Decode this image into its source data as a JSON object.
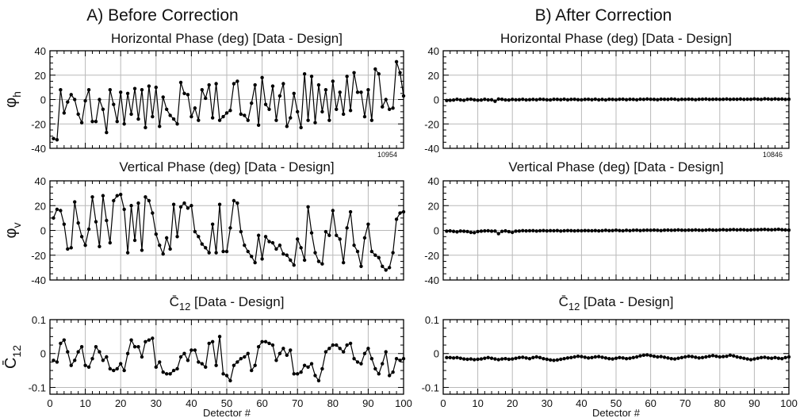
{
  "figure": {
    "panel_a_title": "A) Before Correction",
    "panel_b_title": "B) After Correction"
  },
  "chart_data": [
    {
      "type": "line",
      "panel": "A",
      "title": "Horizontal Phase (deg) [Data - Design]",
      "ylabel": "φh",
      "ylabel_main": "φ",
      "ylabel_sub": "h",
      "xlabel": "",
      "xlim": [
        0,
        100
      ],
      "ylim": [
        -40,
        40
      ],
      "xticks": [
        0,
        10,
        20,
        30,
        40,
        50,
        60,
        70,
        80,
        90,
        100
      ],
      "xtick_labels": false,
      "yticks": [
        -40,
        -20,
        0,
        20,
        40
      ],
      "grid": true,
      "annotation": "10954",
      "x": [
        1,
        2,
        3,
        4,
        5,
        6,
        7,
        8,
        9,
        10,
        11,
        12,
        13,
        14,
        15,
        16,
        17,
        18,
        19,
        20,
        21,
        22,
        23,
        24,
        25,
        26,
        27,
        28,
        29,
        30,
        31,
        32,
        33,
        34,
        35,
        36,
        37,
        38,
        39,
        40,
        41,
        42,
        43,
        44,
        45,
        46,
        47,
        48,
        49,
        50,
        51,
        52,
        53,
        54,
        55,
        56,
        57,
        58,
        59,
        60,
        61,
        62,
        63,
        64,
        65,
        66,
        67,
        68,
        69,
        70,
        71,
        72,
        73,
        74,
        75,
        76,
        77,
        78,
        79,
        80,
        81,
        82,
        83,
        84,
        85,
        86,
        87,
        88,
        89,
        90,
        91,
        92,
        93,
        94,
        95,
        96,
        97,
        98,
        99,
        100
      ],
      "y": [
        -32,
        -33,
        8,
        -11,
        -2,
        4,
        0,
        -12,
        -19,
        -1,
        8,
        -18,
        -18,
        0,
        -8,
        -27,
        8,
        -4,
        -18,
        6,
        -20,
        5,
        -12,
        9,
        -16,
        8,
        -23,
        11,
        -14,
        10,
        -22,
        2,
        -8,
        -13,
        -16,
        -20,
        14,
        5,
        4,
        -14,
        -7,
        -17,
        8,
        1,
        12,
        -15,
        13,
        -17,
        -14,
        -11,
        -9,
        13,
        15,
        -12,
        -13,
        -17,
        -3,
        12,
        -21,
        18,
        -4,
        -8,
        11,
        -17,
        3,
        13,
        -22,
        -15,
        5,
        -10,
        -23,
        21,
        -17,
        19,
        -19,
        12,
        -10,
        8,
        -17,
        15,
        -8,
        6,
        -12,
        19,
        -9,
        22,
        6,
        6,
        -14,
        8,
        -17,
        25,
        21,
        -6,
        0,
        -8,
        -7,
        31,
        22,
        3
      ]
    },
    {
      "type": "line",
      "panel": "B",
      "title": "Horizontal Phase (deg) [Data - Design]",
      "ylabel": "",
      "xlabel": "",
      "xlim": [
        0,
        100
      ],
      "ylim": [
        -40,
        40
      ],
      "xticks": [
        0,
        10,
        20,
        30,
        40,
        50,
        60,
        70,
        80,
        90,
        100
      ],
      "xtick_labels": false,
      "yticks": [
        -40,
        -20,
        0,
        20,
        40
      ],
      "grid": true,
      "annotation": "10846",
      "x": [
        1,
        2,
        3,
        4,
        5,
        6,
        7,
        8,
        9,
        10,
        11,
        12,
        13,
        14,
        15,
        16,
        17,
        18,
        19,
        20,
        21,
        22,
        23,
        24,
        25,
        26,
        27,
        28,
        29,
        30,
        31,
        32,
        33,
        34,
        35,
        36,
        37,
        38,
        39,
        40,
        41,
        42,
        43,
        44,
        45,
        46,
        47,
        48,
        49,
        50,
        51,
        52,
        53,
        54,
        55,
        56,
        57,
        58,
        59,
        60,
        61,
        62,
        63,
        64,
        65,
        66,
        67,
        68,
        69,
        70,
        71,
        72,
        73,
        74,
        75,
        76,
        77,
        78,
        79,
        80,
        81,
        82,
        83,
        84,
        85,
        86,
        87,
        88,
        89,
        90,
        91,
        92,
        93,
        94,
        95,
        96,
        97,
        98,
        99,
        100
      ],
      "y": [
        -0.8,
        -0.6,
        -0.4,
        0.2,
        -0.3,
        -0.6,
        0.1,
        0.3,
        -0.2,
        -0.5,
        -0.4,
        0.2,
        -0.3,
        -0.2,
        -1.4,
        0.4,
        0.2,
        -0.3,
        -0.4,
        0.1,
        -0.2,
        -0.1,
        0.2,
        -0.3,
        -0.1,
        0.1,
        -0.2,
        0.3,
        0.1,
        -0.2,
        -0.3,
        0.2,
        0.1,
        -0.1,
        0.3,
        -0.2,
        0.1,
        0.2,
        -0.1,
        -0.2,
        0.1,
        0.2,
        -0.1,
        0.3,
        -0.2,
        0.1,
        -0.3,
        0.2,
        0.1,
        -0.1,
        0.2,
        0.3,
        -0.1,
        0.2,
        0.1,
        -0.2,
        0.3,
        0.1,
        0.4,
        0.2,
        0.1,
        -0.1,
        0.3,
        0.2,
        0.1,
        0.4,
        0.3,
        -0.1,
        0.2,
        0.1,
        0.3,
        0.2,
        -0.1,
        0.2,
        0.3,
        0.4,
        0.1,
        0.2,
        0.3,
        0.1,
        0.2,
        0.4,
        0.1,
        0.3,
        0.2,
        0.4,
        0.1,
        0.3,
        0.2,
        0.5,
        0.3,
        0.1,
        0.6,
        0.4,
        0.2,
        0.5,
        0.3,
        0.4,
        0.1,
        0.3
      ]
    },
    {
      "type": "line",
      "panel": "A",
      "title": "Vertical Phase (deg) [Data - Design]",
      "ylabel": "φv",
      "ylabel_main": "φ",
      "ylabel_sub": "v",
      "xlabel": "",
      "xlim": [
        0,
        100
      ],
      "ylim": [
        -40,
        40
      ],
      "xticks": [
        0,
        10,
        20,
        30,
        40,
        50,
        60,
        70,
        80,
        90,
        100
      ],
      "xtick_labels": false,
      "yticks": [
        -40,
        -20,
        0,
        20,
        40
      ],
      "grid": true,
      "x": [
        1,
        2,
        3,
        4,
        5,
        6,
        7,
        8,
        9,
        10,
        11,
        12,
        13,
        14,
        15,
        16,
        17,
        18,
        19,
        20,
        21,
        22,
        23,
        24,
        25,
        26,
        27,
        28,
        29,
        30,
        31,
        32,
        33,
        34,
        35,
        36,
        37,
        38,
        39,
        40,
        41,
        42,
        43,
        44,
        45,
        46,
        47,
        48,
        49,
        50,
        51,
        52,
        53,
        54,
        55,
        56,
        57,
        58,
        59,
        60,
        61,
        62,
        63,
        64,
        65,
        66,
        67,
        68,
        69,
        70,
        71,
        72,
        73,
        74,
        75,
        76,
        77,
        78,
        79,
        80,
        81,
        82,
        83,
        84,
        85,
        86,
        87,
        88,
        89,
        90,
        91,
        92,
        93,
        94,
        95,
        96,
        97,
        98,
        99,
        100
      ],
      "y": [
        10,
        17,
        16,
        5,
        -15,
        -14,
        23,
        6,
        -5,
        -12,
        1,
        27,
        7,
        -13,
        28,
        8,
        -10,
        24,
        28,
        29,
        17,
        -18,
        20,
        -8,
        22,
        -16,
        27,
        24,
        14,
        -3,
        -12,
        -19,
        -6,
        -15,
        21,
        -5,
        19,
        22,
        18,
        20,
        -1,
        -5,
        -11,
        -14,
        -18,
        5,
        -18,
        21,
        -17,
        -17,
        2,
        24,
        22,
        -1,
        -12,
        -17,
        -21,
        -26,
        -4,
        -23,
        -5,
        -9,
        -10,
        -15,
        -12,
        -19,
        -20,
        -24,
        -28,
        -7,
        -14,
        -24,
        19,
        -2,
        -18,
        -25,
        -27,
        -1,
        -4,
        16,
        -4,
        -7,
        -26,
        2,
        15,
        -12,
        -17,
        -29,
        -6,
        5,
        -17,
        -20,
        -22,
        -29,
        -32,
        -30,
        -18,
        9,
        14,
        15
      ]
    },
    {
      "type": "line",
      "panel": "B",
      "title": "Vertical Phase (deg) [Data - Design]",
      "ylabel": "",
      "xlabel": "",
      "xlim": [
        0,
        100
      ],
      "ylim": [
        -40,
        40
      ],
      "xticks": [
        0,
        10,
        20,
        30,
        40,
        50,
        60,
        70,
        80,
        90,
        100
      ],
      "xtick_labels": false,
      "yticks": [
        -40,
        -20,
        0,
        20,
        40
      ],
      "grid": true,
      "x": [
        1,
        2,
        3,
        4,
        5,
        6,
        7,
        8,
        9,
        10,
        11,
        12,
        13,
        14,
        15,
        16,
        17,
        18,
        19,
        20,
        21,
        22,
        23,
        24,
        25,
        26,
        27,
        28,
        29,
        30,
        31,
        32,
        33,
        34,
        35,
        36,
        37,
        38,
        39,
        40,
        41,
        42,
        43,
        44,
        45,
        46,
        47,
        48,
        49,
        50,
        51,
        52,
        53,
        54,
        55,
        56,
        57,
        58,
        59,
        60,
        61,
        62,
        63,
        64,
        65,
        66,
        67,
        68,
        69,
        70,
        71,
        72,
        73,
        74,
        75,
        76,
        77,
        78,
        79,
        80,
        81,
        82,
        83,
        84,
        85,
        86,
        87,
        88,
        89,
        90,
        91,
        92,
        93,
        94,
        95,
        96,
        97,
        98,
        99,
        100
      ],
      "y": [
        -0.6,
        -0.4,
        -0.8,
        -1.2,
        -0.5,
        -0.7,
        -0.9,
        -1.6,
        -1.8,
        -0.9,
        -0.6,
        -0.4,
        -0.3,
        -0.6,
        -0.5,
        -2.6,
        -0.8,
        -0.4,
        -1.0,
        -1.6,
        -0.6,
        -0.5,
        -0.2,
        -0.4,
        -0.3,
        -0.2,
        -0.5,
        -0.3,
        -0.1,
        -0.4,
        -0.2,
        -0.3,
        -0.1,
        -0.5,
        -0.3,
        -0.1,
        -0.2,
        -0.4,
        -0.2,
        -0.3,
        -0.1,
        -0.2,
        -0.3,
        -0.1,
        -0.4,
        -0.2,
        0.1,
        -0.2,
        -0.1,
        0.2,
        -0.1,
        -0.3,
        0.1,
        -0.2,
        0.1,
        0.2,
        -0.1,
        0.1,
        0.2,
        0.1,
        0.3,
        0.1,
        -0.1,
        0.2,
        0.3,
        0.1,
        0.2,
        0.4,
        0.2,
        0.1,
        0.3,
        0.2,
        0.4,
        0.2,
        0.1,
        0.3,
        0.5,
        0.3,
        0.2,
        0.4,
        0.6,
        0.3,
        0.5,
        0.7,
        0.4,
        0.6,
        0.5,
        0.3,
        0.4,
        0.6,
        0.5,
        0.7,
        0.8,
        0.6,
        0.5,
        0.7,
        0.9,
        0.6,
        0.4,
        0.3
      ]
    },
    {
      "type": "line",
      "panel": "A",
      "title": "C̄12 [Data - Design]",
      "title_main": "C̄",
      "title_sub": "12",
      "title_rest": " [Data - Design]",
      "ylabel": "C̄12",
      "ylabel_main": "C̄",
      "ylabel_sub": "12",
      "xlabel": "Detector #",
      "xlim": [
        0,
        100
      ],
      "ylim": [
        -0.12,
        0.1
      ],
      "xticks": [
        0,
        10,
        20,
        30,
        40,
        50,
        60,
        70,
        80,
        90,
        100
      ],
      "xtick_labels": true,
      "yticks": [
        -0.1,
        0,
        0.1
      ],
      "ytick_labels": [
        "-0.1",
        "0",
        "0.1"
      ],
      "grid": true,
      "x": [
        1,
        2,
        3,
        4,
        5,
        6,
        7,
        8,
        9,
        10,
        11,
        12,
        13,
        14,
        15,
        16,
        17,
        18,
        19,
        20,
        21,
        22,
        23,
        24,
        25,
        26,
        27,
        28,
        29,
        30,
        31,
        32,
        33,
        34,
        35,
        36,
        37,
        38,
        39,
        40,
        41,
        42,
        43,
        44,
        45,
        46,
        47,
        48,
        49,
        50,
        51,
        52,
        53,
        54,
        55,
        56,
        57,
        58,
        59,
        60,
        61,
        62,
        63,
        64,
        65,
        66,
        67,
        68,
        69,
        70,
        71,
        72,
        73,
        74,
        75,
        76,
        77,
        78,
        79,
        80,
        81,
        82,
        83,
        84,
        85,
        86,
        87,
        88,
        89,
        90,
        91,
        92,
        93,
        94,
        95,
        96,
        97,
        98,
        99,
        100
      ],
      "y": [
        -0.02,
        -0.025,
        0.03,
        0.04,
        0.005,
        -0.035,
        -0.02,
        0.005,
        0.02,
        -0.035,
        -0.04,
        -0.015,
        0.02,
        0.005,
        -0.02,
        -0.01,
        -0.045,
        -0.05,
        -0.045,
        -0.03,
        -0.05,
        0.0,
        0.04,
        0.02,
        0.02,
        -0.01,
        0.035,
        0.04,
        0.045,
        -0.04,
        -0.025,
        -0.055,
        -0.06,
        -0.06,
        -0.05,
        -0.045,
        -0.01,
        0.0,
        -0.02,
        0.01,
        0.01,
        -0.025,
        -0.03,
        -0.04,
        0.03,
        0.035,
        -0.035,
        0.05,
        -0.06,
        -0.065,
        -0.08,
        -0.035,
        -0.025,
        -0.015,
        -0.01,
        0.0,
        -0.05,
        -0.035,
        0.02,
        0.035,
        0.035,
        0.03,
        0.025,
        -0.02,
        0.0,
        0.015,
        -0.005,
        0.01,
        -0.06,
        -0.06,
        -0.055,
        -0.035,
        -0.04,
        -0.03,
        -0.065,
        -0.08,
        -0.045,
        0.005,
        0.015,
        0.025,
        0.025,
        0.015,
        0.005,
        0.025,
        0.03,
        -0.015,
        -0.025,
        -0.03,
        0.0,
        0.015,
        -0.015,
        -0.045,
        -0.06,
        -0.03,
        0.005,
        -0.065,
        -0.055,
        -0.015,
        -0.02,
        -0.015
      ]
    },
    {
      "type": "line",
      "panel": "B",
      "title": "C̄12 [Data - Design]",
      "title_main": "C̄",
      "title_sub": "12",
      "title_rest": " [Data - Design]",
      "ylabel": "",
      "xlabel": "Detector #",
      "xlim": [
        0,
        100
      ],
      "ylim": [
        -0.12,
        0.1
      ],
      "xticks": [
        0,
        10,
        20,
        30,
        40,
        50,
        60,
        70,
        80,
        90,
        100
      ],
      "xtick_labels": true,
      "yticks": [
        -0.1,
        0,
        0.1
      ],
      "ytick_labels": [
        "-0.1",
        "0",
        "0.1"
      ],
      "grid": true,
      "x": [
        1,
        2,
        3,
        4,
        5,
        6,
        7,
        8,
        9,
        10,
        11,
        12,
        13,
        14,
        15,
        16,
        17,
        18,
        19,
        20,
        21,
        22,
        23,
        24,
        25,
        26,
        27,
        28,
        29,
        30,
        31,
        32,
        33,
        34,
        35,
        36,
        37,
        38,
        39,
        40,
        41,
        42,
        43,
        44,
        45,
        46,
        47,
        48,
        49,
        50,
        51,
        52,
        53,
        54,
        55,
        56,
        57,
        58,
        59,
        60,
        61,
        62,
        63,
        64,
        65,
        66,
        67,
        68,
        69,
        70,
        71,
        72,
        73,
        74,
        75,
        76,
        77,
        78,
        79,
        80,
        81,
        82,
        83,
        84,
        85,
        86,
        87,
        88,
        89,
        90,
        91,
        92,
        93,
        94,
        95,
        96,
        97,
        98,
        99,
        100
      ],
      "y": [
        -0.012,
        -0.012,
        -0.013,
        -0.012,
        -0.014,
        -0.016,
        -0.017,
        -0.016,
        -0.018,
        -0.017,
        -0.016,
        -0.014,
        -0.012,
        -0.014,
        -0.016,
        -0.018,
        -0.016,
        -0.015,
        -0.017,
        -0.016,
        -0.014,
        -0.012,
        -0.011,
        -0.013,
        -0.015,
        -0.012,
        -0.01,
        -0.012,
        -0.015,
        -0.017,
        -0.019,
        -0.02,
        -0.019,
        -0.017,
        -0.015,
        -0.013,
        -0.012,
        -0.01,
        -0.008,
        -0.009,
        -0.011,
        -0.013,
        -0.012,
        -0.01,
        -0.009,
        -0.011,
        -0.013,
        -0.015,
        -0.016,
        -0.014,
        -0.012,
        -0.013,
        -0.015,
        -0.014,
        -0.012,
        -0.01,
        -0.007,
        -0.005,
        -0.004,
        -0.006,
        -0.008,
        -0.01,
        -0.009,
        -0.011,
        -0.013,
        -0.015,
        -0.016,
        -0.014,
        -0.012,
        -0.01,
        -0.008,
        -0.009,
        -0.011,
        -0.013,
        -0.012,
        -0.01,
        -0.008,
        -0.006,
        -0.008,
        -0.01,
        -0.009,
        -0.008,
        -0.005,
        -0.007,
        -0.01,
        -0.012,
        -0.014,
        -0.016,
        -0.018,
        -0.016,
        -0.014,
        -0.012,
        -0.011,
        -0.013,
        -0.014,
        -0.012,
        -0.014,
        -0.015,
        -0.012,
        -0.01
      ]
    }
  ]
}
